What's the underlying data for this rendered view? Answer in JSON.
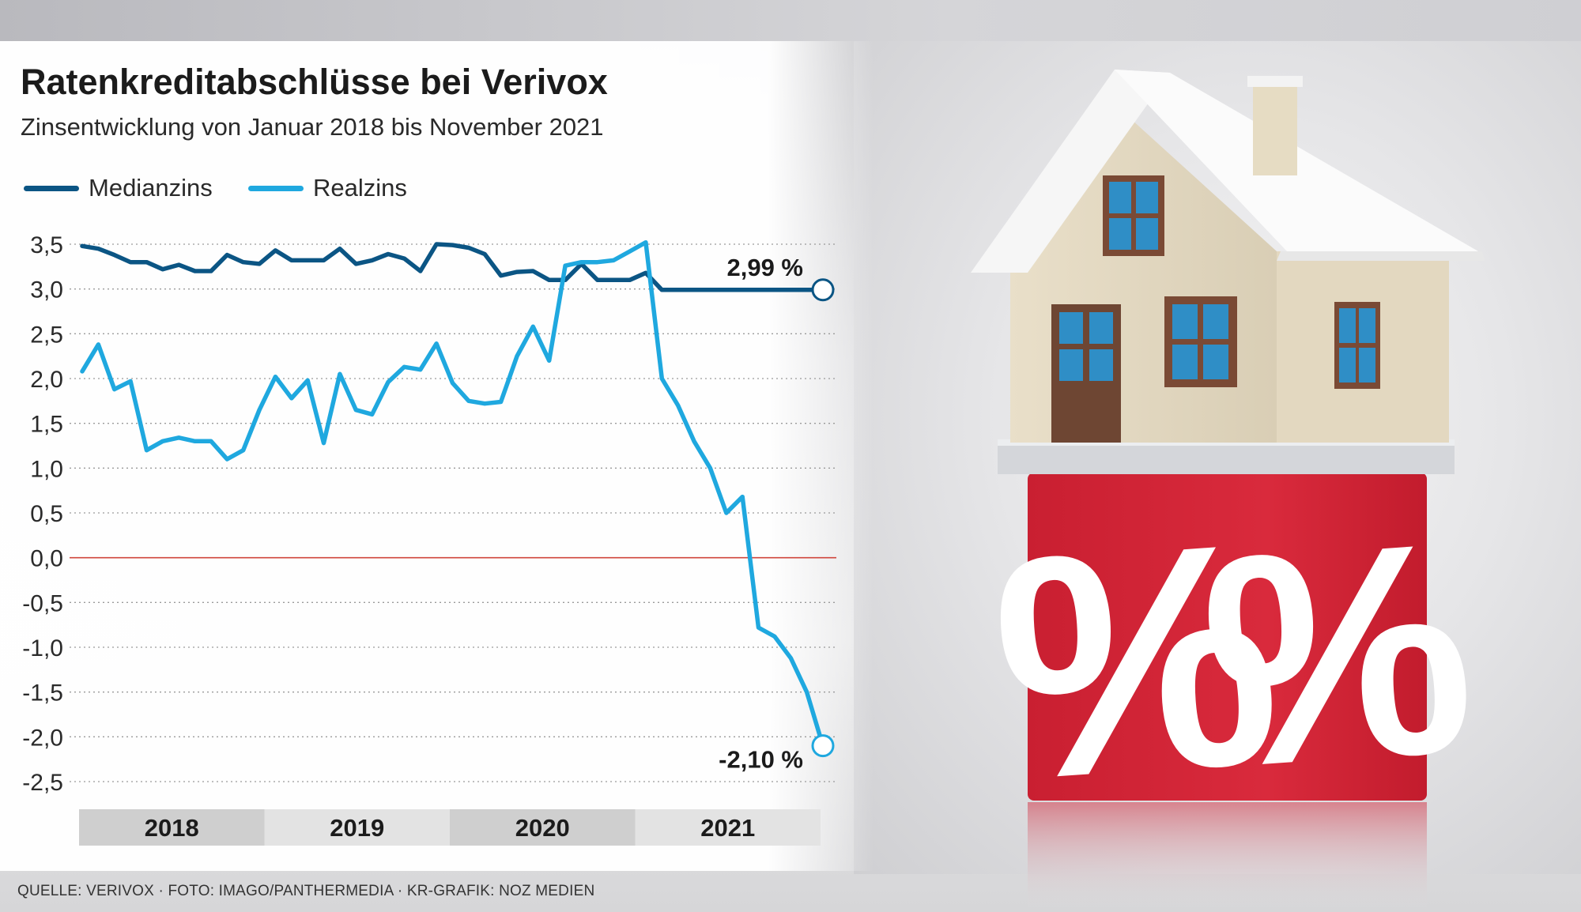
{
  "header": {
    "title": "Ratenkreditabschlüsse bei Verivox",
    "subtitle": "Zinsentwicklung von Januar 2018 bis November 2021"
  },
  "legend": [
    {
      "label": "Medianzins",
      "color": "#0b5584"
    },
    {
      "label": "Realzins",
      "color": "#1fa8df"
    }
  ],
  "footer": {
    "source": "QUELLE: VERIVOX · FOTO: IMAGO/PANTHERMEDIA · KR-GRAFIK: NOZ MEDIEN"
  },
  "photo": {
    "cube_symbols": [
      "%",
      "%"
    ],
    "cube_color": "#d42538"
  },
  "chart_data": {
    "type": "line",
    "title": "Ratenkreditabschlüsse bei Verivox",
    "subtitle": "Zinsentwicklung von Januar 2018 bis November 2021",
    "xlabel": "",
    "ylabel": "",
    "ylim": [
      -2.5,
      3.5
    ],
    "y_ticks": [
      "3,5",
      "3,0",
      "2,5",
      "2,0",
      "1,5",
      "1,0",
      "0,5",
      "0,0",
      "-0,5",
      "-1,0",
      "-1,5",
      "-2,0",
      "-2,5"
    ],
    "y_tick_values": [
      3.5,
      3.0,
      2.5,
      2.0,
      1.5,
      1.0,
      0.5,
      0.0,
      -0.5,
      -1.0,
      -1.5,
      -2.0,
      -2.5
    ],
    "years": [
      "2018",
      "2019",
      "2020",
      "2021"
    ],
    "x_start": "2018-01",
    "x_end": "2021-11",
    "grid": "dotted horizontal",
    "zero_line_color": "#d0463c",
    "legend_position": "top-left",
    "series": [
      {
        "name": "Medianzins",
        "color": "#0b5584",
        "end_label": "2,99 %",
        "values": [
          3.48,
          3.45,
          3.38,
          3.3,
          3.3,
          3.22,
          3.27,
          3.2,
          3.2,
          3.38,
          3.3,
          3.28,
          3.43,
          3.32,
          3.32,
          3.32,
          3.45,
          3.28,
          3.32,
          3.39,
          3.34,
          3.2,
          3.5,
          3.49,
          3.46,
          3.39,
          3.15,
          3.19,
          3.2,
          3.1,
          3.1,
          3.28,
          3.1,
          3.1,
          3.1,
          3.18,
          2.99,
          2.99,
          2.99,
          2.99,
          2.99,
          2.99,
          2.99,
          2.99,
          2.99,
          2.99,
          2.99
        ]
      },
      {
        "name": "Realzins",
        "color": "#1fa8df",
        "end_label": "-2,10 %",
        "values": [
          2.08,
          2.38,
          1.88,
          1.97,
          1.2,
          1.3,
          1.34,
          1.3,
          1.3,
          1.1,
          1.2,
          1.65,
          2.02,
          1.78,
          1.98,
          1.28,
          2.05,
          1.65,
          1.6,
          1.96,
          2.13,
          2.1,
          2.39,
          1.95,
          1.75,
          1.72,
          1.74,
          2.25,
          2.58,
          2.2,
          3.26,
          3.3,
          3.3,
          3.32,
          3.42,
          3.52,
          2.0,
          1.7,
          1.3,
          1.0,
          0.5,
          0.68,
          -0.78,
          -0.88,
          -1.12,
          -1.5,
          -2.1
        ]
      }
    ]
  }
}
